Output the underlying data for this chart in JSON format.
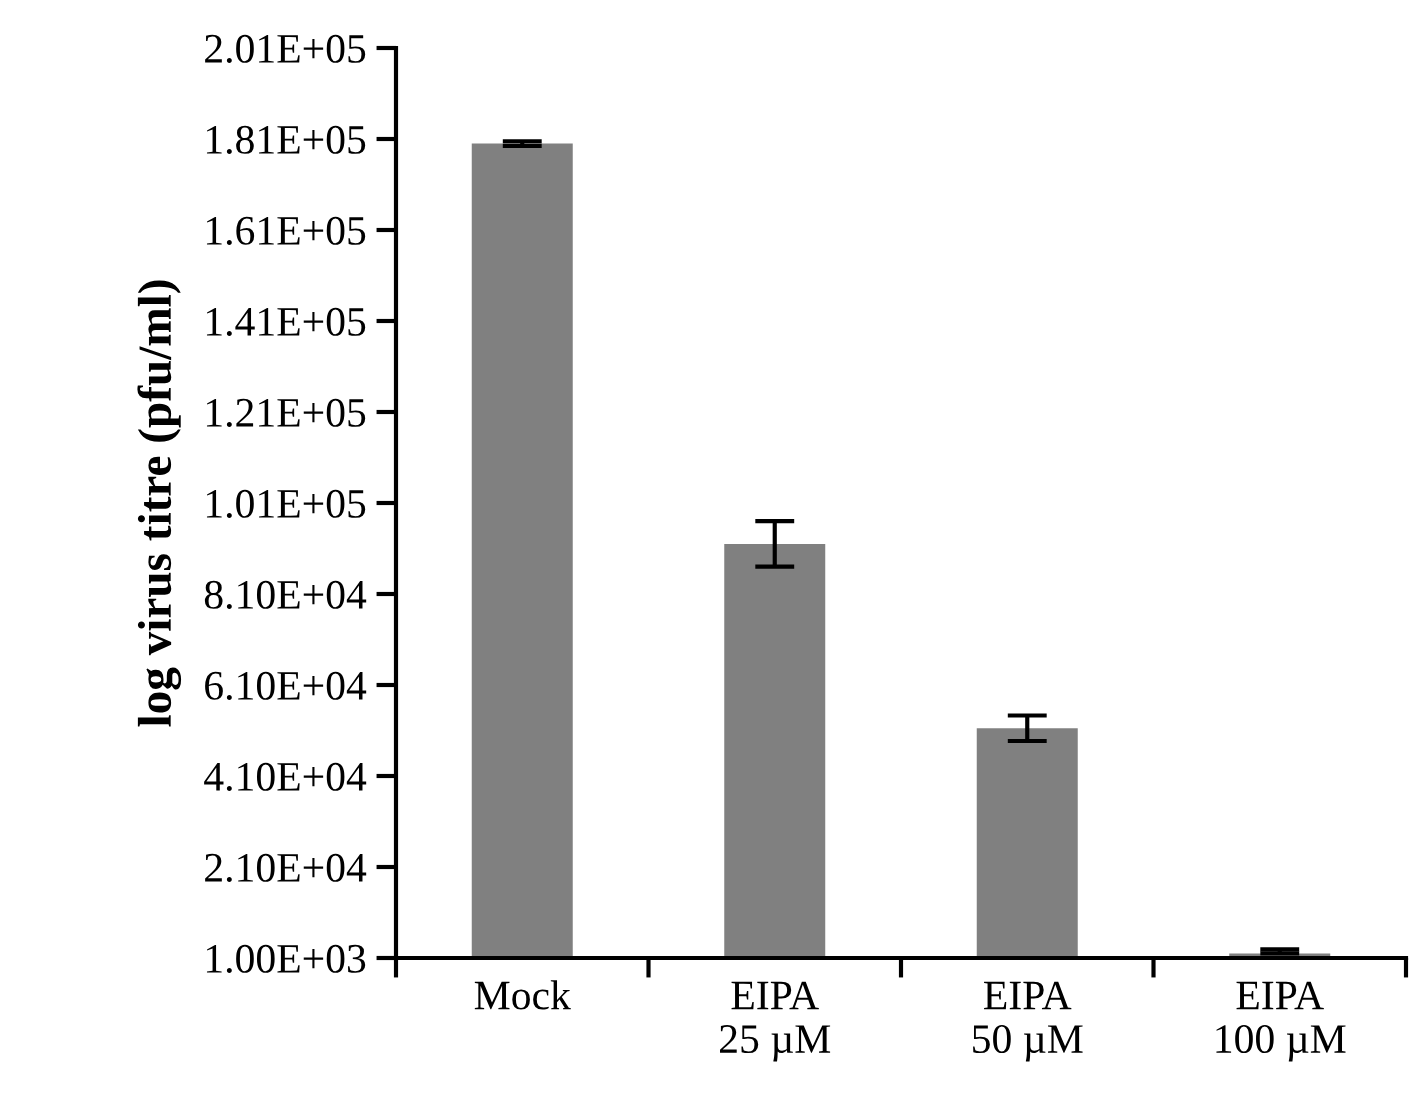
{
  "chart_data": {
    "type": "bar",
    "ylabel": "log virus titre (pfu/ml)",
    "categories": [
      "Mock",
      "EIPA\n25 µM",
      "EIPA\n50 µM",
      "EIPA\n100 µM"
    ],
    "values": [
      180000,
      92000,
      51500,
      2000
    ],
    "errors": [
      500,
      5000,
      2800,
      [
        2000,
        2900
      ]
    ],
    "color": "#808080",
    "ylim": [
      1000,
      201000
    ],
    "yticks": [
      {
        "value": 1000,
        "label": "1.00E+03"
      },
      {
        "value": 21000,
        "label": "2.10E+04"
      },
      {
        "value": 41000,
        "label": "4.10E+04"
      },
      {
        "value": 61000,
        "label": "6.10E+04"
      },
      {
        "value": 81000,
        "label": "8.10E+04"
      },
      {
        "value": 101000,
        "label": "1.01E+05"
      },
      {
        "value": 121000,
        "label": "1.21E+05"
      },
      {
        "value": 141000,
        "label": "1.41E+05"
      },
      {
        "value": 161000,
        "label": "1.61E+05"
      },
      {
        "value": 181000,
        "label": "1.81E+05"
      },
      {
        "value": 201000,
        "label": "2.01E+05"
      }
    ],
    "grid": false
  }
}
